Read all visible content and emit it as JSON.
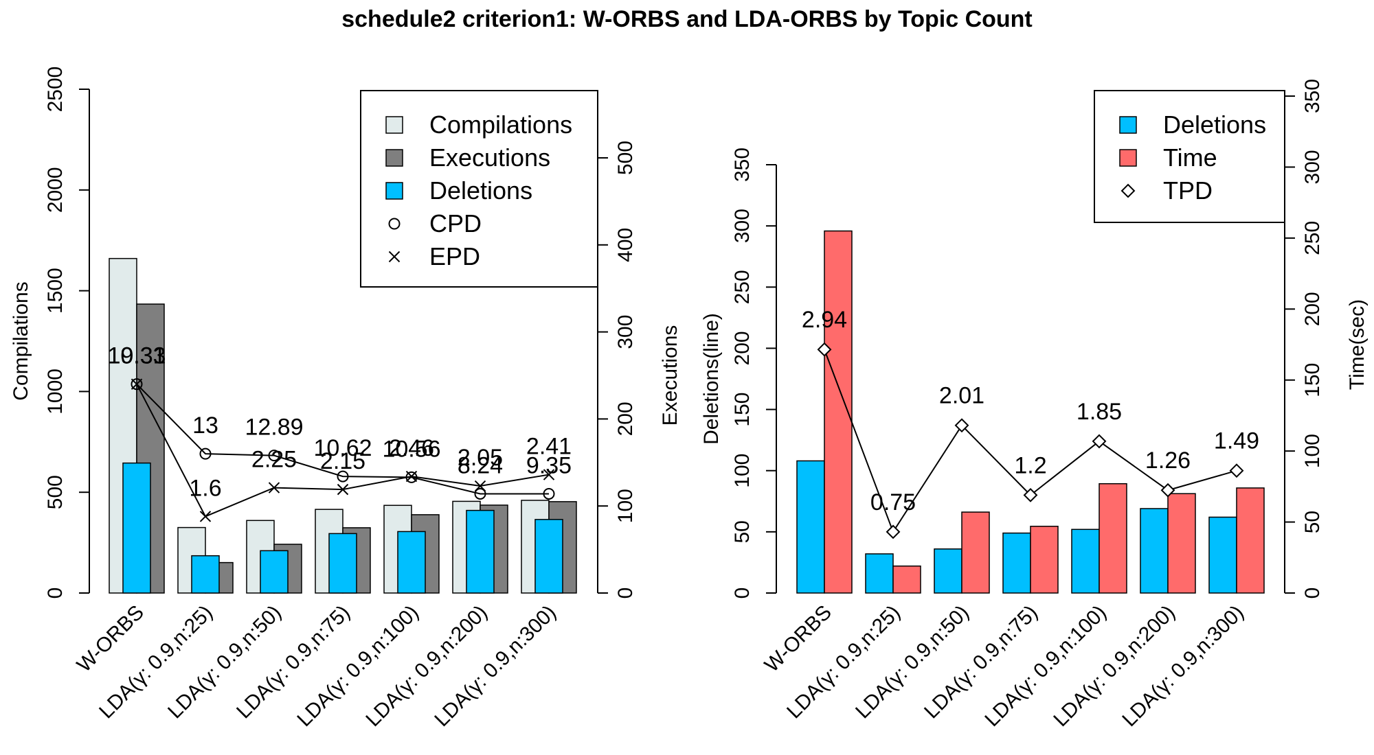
{
  "title": "schedule2 criterion1: W-ORBS and LDA-ORBS by Topic Count",
  "categories": [
    "W-ORBS",
    "LDA(γ: 0.9,n:25)",
    "LDA(γ: 0.9,n:50)",
    "LDA(γ: 0.9,n:75)",
    "LDA(γ: 0.9,n:100)",
    "LDA(γ: 0.9,n:200)",
    "LDA(γ: 0.9,n:300)"
  ],
  "colors": {
    "compilations": "#e1ebeb",
    "executions": "#7f7f7f",
    "deletions": "#00bfff",
    "time": "#ff6b6b"
  },
  "chart_data": [
    {
      "type": "bar",
      "name": "left-panel",
      "left_axis": {
        "label": "Compilations",
        "ylim": [
          0,
          2500
        ],
        "ticks": [
          "0",
          "500",
          "1000",
          "1500",
          "2000",
          "2500"
        ]
      },
      "right_axis": {
        "label": "Executions",
        "ylim": [
          0,
          500
        ],
        "ticks": [
          "0",
          "100",
          "200",
          "300",
          "400",
          "500"
        ]
      },
      "series": [
        {
          "name": "Compilations",
          "axis": "left",
          "values": [
            1660,
            325,
            360,
            415,
            435,
            455,
            460
          ]
        },
        {
          "name": "Executions",
          "axis": "right",
          "values": [
            332,
            35,
            56,
            75,
            90,
            101,
            105
          ]
        },
        {
          "name": "Deletions",
          "axis": "left",
          "values": [
            645,
            185,
            210,
            295,
            305,
            410,
            365
          ]
        }
      ],
      "lines": [
        {
          "name": "CPD",
          "marker": "circle",
          "y_right": [
            240,
            160,
            158,
            134,
            133,
            114,
            114
          ],
          "labels": [
            "19.33",
            "13",
            "12.89",
            "10.62",
            "10.56",
            "8.24",
            "9.35"
          ]
        },
        {
          "name": "EPD",
          "marker": "cross",
          "y_right": [
            240,
            88,
            121,
            119,
            134,
            123,
            136
          ],
          "labels": [
            "10.31",
            "1.6",
            "2.25",
            "2.15",
            "2.46",
            "2.05",
            "2.41"
          ]
        }
      ],
      "legend": [
        "Compilations",
        "Executions",
        "Deletions",
        "CPD",
        "EPD"
      ],
      "legend_position": "top-right"
    },
    {
      "type": "bar",
      "name": "right-panel",
      "left_axis": {
        "label": "Deletions(line)",
        "ylim": [
          0,
          350
        ],
        "ticks": [
          "0",
          "50",
          "100",
          "150",
          "200",
          "250",
          "300",
          "350"
        ]
      },
      "right_axis": {
        "label": "Time(sec)",
        "ylim": [
          0,
          350
        ],
        "ticks": [
          "0",
          "50",
          "100",
          "150",
          "200",
          "250",
          "300",
          "350"
        ]
      },
      "series": [
        {
          "name": "Deletions",
          "axis": "left",
          "values": [
            108,
            32,
            36,
            49,
            52,
            69,
            62
          ]
        },
        {
          "name": "Time",
          "axis": "right",
          "values": [
            255,
            19,
            57,
            47,
            77,
            70,
            74
          ]
        }
      ],
      "lines": [
        {
          "name": "TPD",
          "marker": "diamond",
          "y_left": [
            199,
            50,
            137,
            80,
            124,
            84,
            100
          ],
          "labels": [
            "2.94",
            "0.75",
            "2.01",
            "1.2",
            "1.85",
            "1.26",
            "1.49"
          ]
        }
      ],
      "legend": [
        "Deletions",
        "Time",
        "TPD"
      ],
      "legend_position": "top-right"
    }
  ]
}
